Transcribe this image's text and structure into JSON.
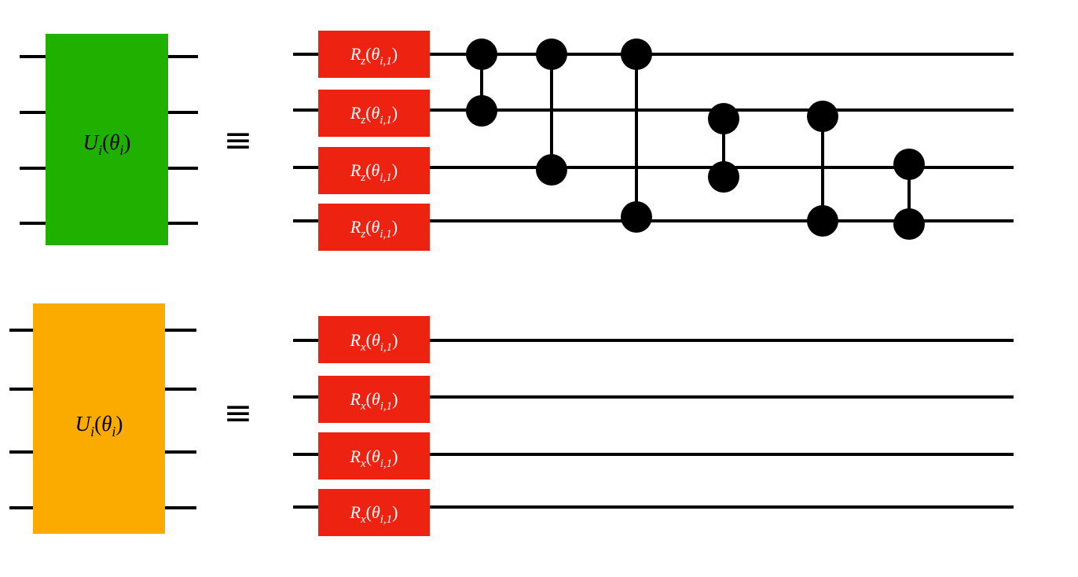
{
  "colors": {
    "wire": "#000000",
    "block_top": "#20b000",
    "block_bottom": "#fbab00",
    "gate": "#ee2211",
    "gate_text": "#ffffff",
    "control_dot": "#000000"
  },
  "equiv_symbol": "≡",
  "blocks": [
    {
      "label": {
        "base": "U",
        "sub": "i",
        "open": "(",
        "theta": "θ",
        "theta_sub": "i",
        "close": ")"
      },
      "gates": [
        {
          "base": "R",
          "axis": "z",
          "open": "(",
          "theta": "θ",
          "sub": "i,1",
          "close": ")"
        },
        {
          "base": "R",
          "axis": "z",
          "open": "(",
          "theta": "θ",
          "sub": "i,1",
          "close": ")"
        },
        {
          "base": "R",
          "axis": "z",
          "open": "(",
          "theta": "θ",
          "sub": "i,1",
          "close": ")"
        },
        {
          "base": "R",
          "axis": "z",
          "open": "(",
          "theta": "θ",
          "sub": "i,1",
          "close": ")"
        }
      ],
      "controlled_z": [
        {
          "qubits": [
            1,
            2
          ]
        },
        {
          "qubits": [
            1,
            3
          ]
        },
        {
          "qubits": [
            1,
            4
          ]
        },
        {
          "qubits": [
            2,
            3
          ]
        },
        {
          "qubits": [
            2,
            4
          ]
        },
        {
          "qubits": [
            3,
            4
          ]
        }
      ]
    },
    {
      "label": {
        "base": "U",
        "sub": "i",
        "open": "(",
        "theta": "θ",
        "theta_sub": "i",
        "close": ")"
      },
      "gates": [
        {
          "base": "R",
          "axis": "x",
          "open": "(",
          "theta": "θ",
          "sub": "i,1",
          "close": ")"
        },
        {
          "base": "R",
          "axis": "x",
          "open": "(",
          "theta": "θ",
          "sub": "i,1",
          "close": ")"
        },
        {
          "base": "R",
          "axis": "x",
          "open": "(",
          "theta": "θ",
          "sub": "i,1",
          "close": ")"
        },
        {
          "base": "R",
          "axis": "x",
          "open": "(",
          "theta": "θ",
          "sub": "i,1",
          "close": ")"
        }
      ],
      "controlled_z": []
    }
  ]
}
